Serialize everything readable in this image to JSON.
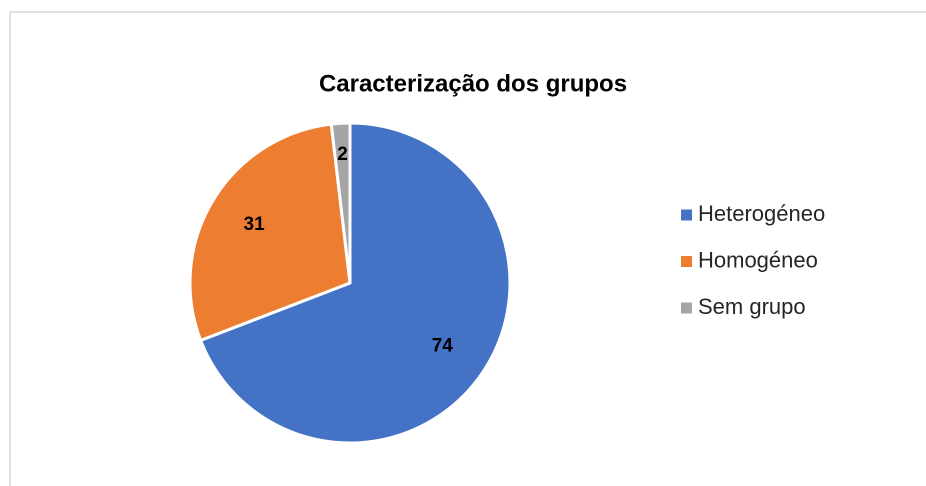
{
  "chart_data": {
    "type": "pie",
    "title": "Caracterização dos grupos",
    "categories": [
      "Heterogéneo",
      "Homogéneo",
      "Sem grupo"
    ],
    "values": [
      74,
      31,
      2
    ],
    "colors": [
      "#4472c4",
      "#ed7d31",
      "#a5a5a5"
    ],
    "legend": "right"
  }
}
